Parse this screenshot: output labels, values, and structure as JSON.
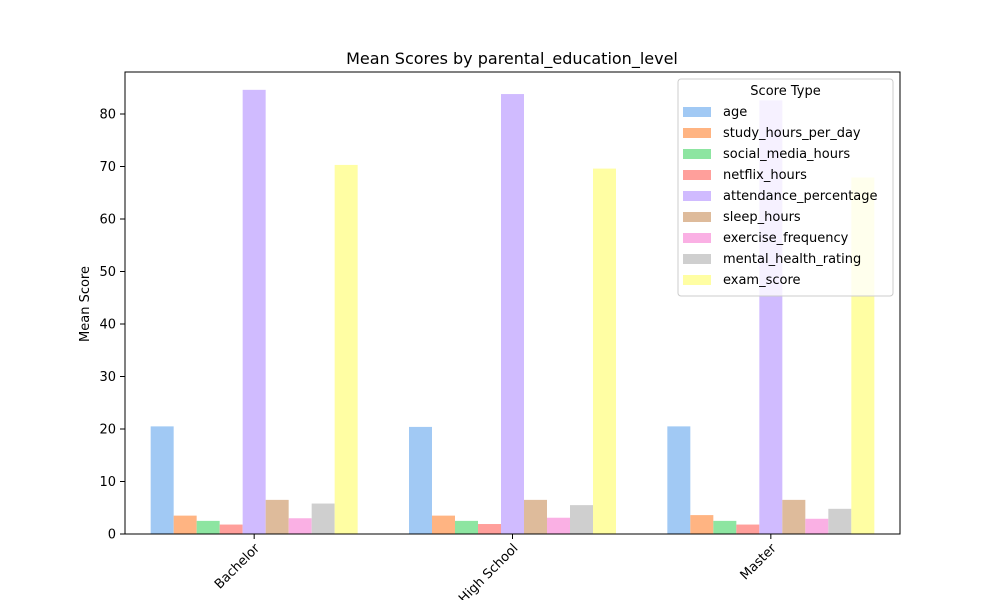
{
  "chart_data": {
    "type": "bar",
    "title": "Mean Scores by parental_education_level",
    "xlabel": "",
    "ylabel": "Mean Score",
    "ylim": [
      0,
      88
    ],
    "yticks": [
      0,
      10,
      20,
      30,
      40,
      50,
      60,
      70,
      80
    ],
    "categories": [
      "Bachelor",
      "High School",
      "Master"
    ],
    "legend": {
      "title": "Score Type",
      "position": "top-right"
    },
    "series": [
      {
        "name": "age",
        "color": "#a1c9f4",
        "values": [
          20.5,
          20.4,
          20.5
        ]
      },
      {
        "name": "study_hours_per_day",
        "color": "#ffb482",
        "values": [
          3.5,
          3.5,
          3.6
        ]
      },
      {
        "name": "social_media_hours",
        "color": "#8de5a1",
        "values": [
          2.5,
          2.5,
          2.5
        ]
      },
      {
        "name": "netflix_hours",
        "color": "#ff9f9b",
        "values": [
          1.8,
          1.9,
          1.8
        ]
      },
      {
        "name": "attendance_percentage",
        "color": "#d0bbff",
        "values": [
          84.6,
          83.8,
          82.6
        ]
      },
      {
        "name": "sleep_hours",
        "color": "#debb9b",
        "values": [
          6.5,
          6.5,
          6.5
        ]
      },
      {
        "name": "exercise_frequency",
        "color": "#fab0e4",
        "values": [
          3.0,
          3.1,
          2.9
        ]
      },
      {
        "name": "mental_health_rating",
        "color": "#cfcfcf",
        "values": [
          5.8,
          5.5,
          4.8
        ]
      },
      {
        "name": "exam_score",
        "color": "#fffea3",
        "values": [
          70.3,
          69.6,
          67.9
        ]
      }
    ]
  }
}
